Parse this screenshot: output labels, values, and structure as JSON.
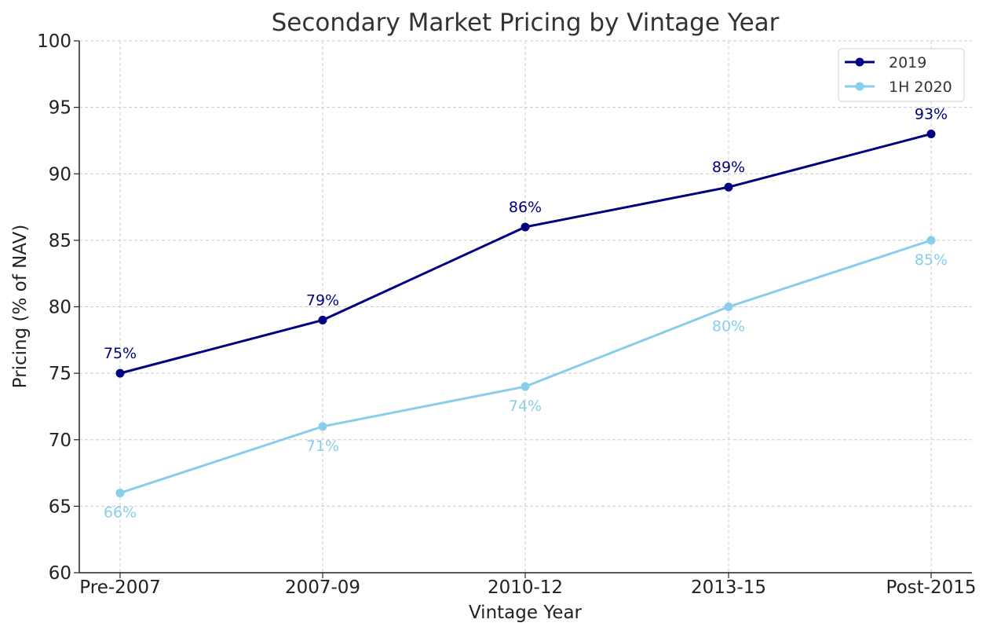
{
  "chart_data": {
    "type": "line",
    "title": "Secondary Market Pricing by Vintage Year",
    "xlabel": "Vintage Year",
    "ylabel": "Pricing (% of NAV)",
    "categories": [
      "Pre-2007",
      "2007-09",
      "2010-12",
      "2013-15",
      "Post-2015"
    ],
    "ylim": [
      60,
      100
    ],
    "yticks": [
      60,
      65,
      70,
      75,
      80,
      85,
      90,
      95,
      100
    ],
    "grid": true,
    "legend_position": "top-right",
    "series": [
      {
        "name": "2019",
        "color": "#000080",
        "values": [
          75,
          79,
          86,
          89,
          93
        ],
        "labels": [
          "75%",
          "79%",
          "86%",
          "89%",
          "93%"
        ],
        "label_position": "above"
      },
      {
        "name": "1H 2020",
        "color": "#87CEEB",
        "values": [
          66,
          71,
          74,
          80,
          85
        ],
        "labels": [
          "66%",
          "71%",
          "74%",
          "80%",
          "85%"
        ],
        "label_position": "below"
      }
    ]
  }
}
